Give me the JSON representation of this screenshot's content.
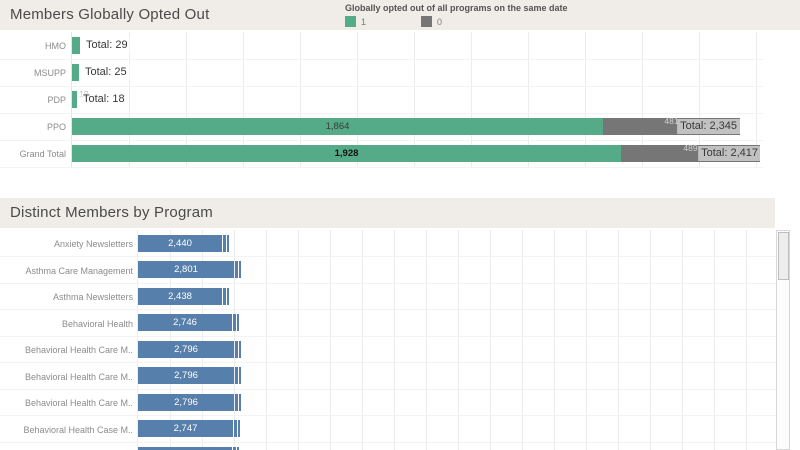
{
  "header1": {
    "title": "Members Globally Opted Out"
  },
  "header2": {
    "title": "Distinct Members by Program"
  },
  "legend": {
    "title": "Globally opted out of all programs on the same date",
    "items": [
      {
        "label": "1",
        "color": "#55ab87"
      },
      {
        "label": "0",
        "color": "#767676"
      }
    ]
  },
  "colors": {
    "green": "#55ab87",
    "gray": "#767676",
    "blue": "#567fab",
    "header_bg": "#f0ede9"
  },
  "chart_data": [
    {
      "type": "bar",
      "orientation": "horizontal",
      "stacked": true,
      "title": "Members Globally Opted Out",
      "legend_title": "Globally opted out of all programs on the same date",
      "legend_position": "top",
      "grid": true,
      "xlim": [
        0,
        2425
      ],
      "categories": [
        "HMO",
        "MSUPP",
        "PDP",
        "PPO",
        "Grand Total"
      ],
      "series": [
        {
          "name": "1",
          "color": "#55ab87",
          "values": [
            29,
            25,
            18,
            1864,
            1928
          ]
        },
        {
          "name": "0",
          "color": "#767676",
          "values": [
            0,
            0,
            0,
            481,
            489
          ]
        }
      ],
      "segment_labels": {
        "green": [
          "",
          "",
          "18",
          "1,864",
          "1,928"
        ],
        "gray": [
          "",
          "",
          "",
          "481",
          "489"
        ]
      },
      "emphasis": [
        false,
        false,
        false,
        false,
        true
      ],
      "totals": [
        29,
        25,
        18,
        2345,
        2417
      ],
      "total_labels": [
        "Total: 29",
        "Total: 25",
        "Total: 18",
        "Total: 2,345",
        "Total: 2,417"
      ]
    },
    {
      "type": "bar",
      "orientation": "horizontal",
      "title": "Distinct Members by Program",
      "grid": true,
      "scrollable": true,
      "xlim": [
        0,
        18250
      ],
      "categories": [
        "Anxiety Newsletters",
        "Asthma Care Management",
        "Asthma Newsletters",
        "Behavioral Health",
        "Behavioral Health Care M..",
        "Behavioral Health Care M..",
        "Behavioral Health Care M..",
        "Behavioral Health Case M..",
        ""
      ],
      "values": [
        2440,
        2801,
        2438,
        2746,
        2796,
        2796,
        2796,
        2747,
        2730
      ],
      "value_labels": [
        "2,440",
        "2,801",
        "2,438",
        "2,746",
        "2,796",
        "2,796",
        "2,796",
        "2,747",
        ""
      ]
    }
  ]
}
